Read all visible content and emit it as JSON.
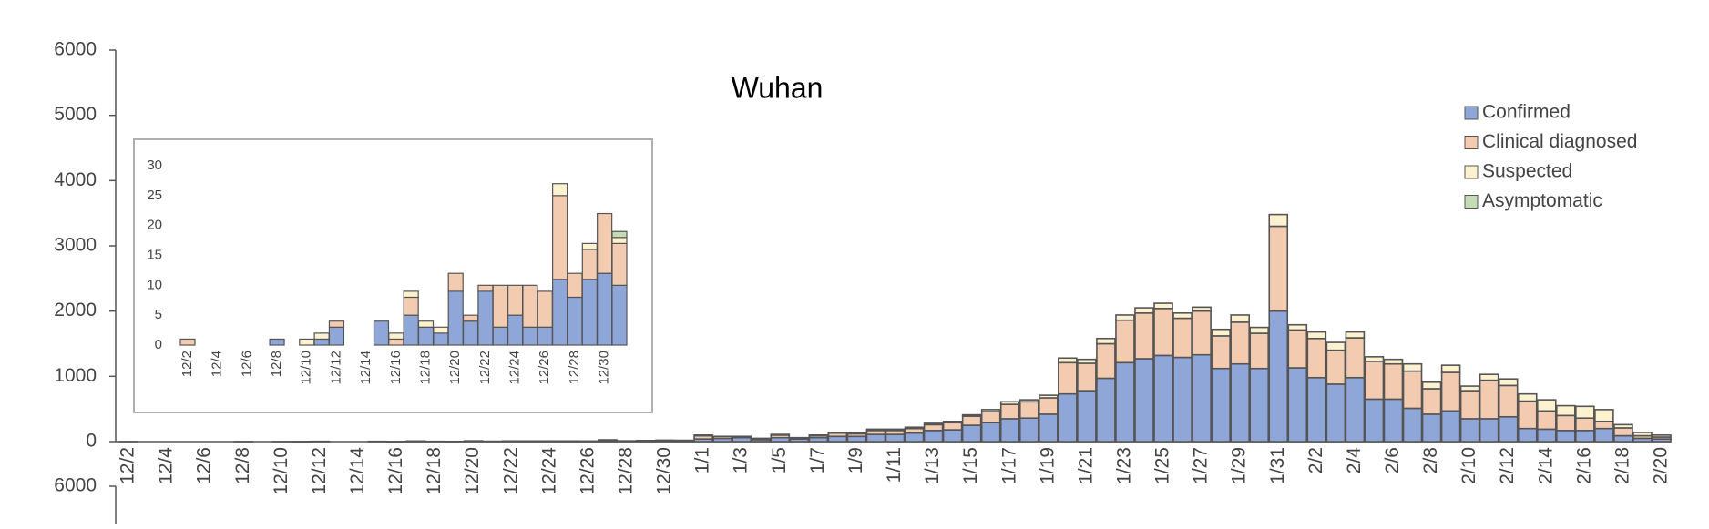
{
  "chart_data": [
    {
      "type": "bar",
      "stacked": true,
      "title": "Wuhan",
      "legend": "upper right",
      "categories": [
        "12/2",
        null,
        "12/4",
        null,
        "12/6",
        null,
        "12/8",
        null,
        "12/10",
        null,
        "12/12",
        null,
        "12/14",
        null,
        "12/16",
        null,
        "12/18",
        null,
        "12/20",
        null,
        "12/22",
        null,
        "12/24",
        null,
        "12/26",
        null,
        "12/28",
        null,
        "12/30",
        null,
        "1/1",
        null,
        "1/3",
        null,
        "1/5",
        null,
        "1/7",
        null,
        "1/9",
        null,
        "1/11",
        null,
        "1/13",
        null,
        "1/15",
        null,
        "1/17",
        null,
        "1/19",
        null,
        "1/21",
        null,
        "1/23",
        null,
        "1/25",
        null,
        "1/27",
        null,
        "1/29",
        null,
        "1/31",
        null,
        "2/2",
        null,
        "2/4",
        null,
        "2/6",
        null,
        "2/8",
        null,
        "2/10",
        null,
        "2/12",
        null,
        "2/14",
        null,
        "2/16",
        null,
        "2/18",
        null,
        "2/20"
      ],
      "ylim": [
        0,
        6000
      ],
      "yticks": [
        0,
        1000,
        2000,
        3000,
        4000,
        5000,
        6000
      ],
      "series": [
        {
          "name": "Confirmed",
          "color": "#8fa6d8",
          "values": [
            0,
            0,
            0,
            0,
            0,
            0,
            1,
            0,
            0,
            1,
            3,
            0,
            0,
            4,
            0,
            5,
            3,
            2,
            9,
            4,
            9,
            3,
            5,
            3,
            3,
            11,
            8,
            11,
            12,
            10,
            40,
            50,
            60,
            30,
            60,
            40,
            60,
            80,
            80,
            110,
            110,
            130,
            170,
            180,
            250,
            290,
            350,
            360,
            420,
            730,
            780,
            970,
            1210,
            1270,
            1320,
            1290,
            1330,
            1120,
            1190,
            1120,
            2000,
            1130,
            980,
            880,
            980,
            650,
            650,
            510,
            420,
            470,
            350,
            350,
            380,
            200,
            190,
            170,
            170,
            200,
            90,
            50,
            40
          ]
        },
        {
          "name": "Clinical diagnosed",
          "color": "#f3cbb0",
          "values": [
            1,
            0,
            0,
            0,
            0,
            0,
            0,
            0,
            0,
            0,
            1,
            0,
            0,
            0,
            1,
            3,
            0,
            0,
            3,
            1,
            1,
            7,
            5,
            7,
            6,
            14,
            4,
            5,
            10,
            7,
            50,
            30,
            20,
            20,
            40,
            20,
            30,
            50,
            40,
            60,
            60,
            70,
            90,
            110,
            140,
            170,
            220,
            250,
            250,
            480,
            420,
            530,
            650,
            700,
            720,
            600,
            670,
            500,
            640,
            540,
            1300,
            580,
            600,
            520,
            610,
            580,
            540,
            570,
            390,
            590,
            430,
            590,
            480,
            420,
            280,
            230,
            190,
            110,
            120,
            40,
            30
          ]
        },
        {
          "name": "Suspected",
          "color": "#fdf2d0",
          "values": [
            0,
            0,
            0,
            0,
            0,
            0,
            0,
            0,
            1,
            1,
            0,
            0,
            0,
            0,
            1,
            1,
            1,
            1,
            0,
            0,
            0,
            0,
            0,
            0,
            0,
            2,
            0,
            1,
            0,
            1,
            10,
            0,
            0,
            0,
            10,
            0,
            10,
            10,
            10,
            20,
            20,
            20,
            20,
            20,
            20,
            30,
            40,
            30,
            40,
            70,
            60,
            80,
            80,
            80,
            80,
            80,
            60,
            100,
            110,
            90,
            180,
            80,
            100,
            120,
            90,
            70,
            70,
            110,
            100,
            110,
            70,
            90,
            100,
            110,
            170,
            150,
            180,
            180,
            50,
            50,
            30
          ]
        },
        {
          "name": "Asymptomatic",
          "color": "#c4dcb6",
          "values": [
            0,
            0,
            0,
            0,
            0,
            0,
            0,
            0,
            0,
            0,
            0,
            0,
            0,
            0,
            0,
            0,
            0,
            0,
            0,
            0,
            0,
            0,
            0,
            0,
            0,
            0,
            0,
            0,
            0,
            1,
            0,
            0,
            0,
            0,
            0,
            0,
            0,
            0,
            0,
            0,
            0,
            0,
            0,
            0,
            0,
            0,
            0,
            0,
            0,
            0,
            0,
            0,
            0,
            0,
            0,
            0,
            0,
            0,
            0,
            0,
            0,
            0,
            0,
            0,
            0,
            0,
            0,
            0,
            0,
            0,
            0,
            0,
            0,
            0,
            0,
            0,
            0,
            0,
            0,
            0,
            0
          ]
        }
      ]
    },
    {
      "type": "bar",
      "stacked": true,
      "categories": [
        "12/2",
        null,
        "12/4",
        null,
        "12/6",
        null,
        "12/8",
        null,
        "12/10",
        null,
        "12/12",
        null,
        "12/14",
        null,
        "12/16",
        null,
        "12/18",
        null,
        "12/20",
        null,
        "12/22",
        null,
        "12/24",
        null,
        "12/26",
        null,
        "12/28",
        null,
        "12/30",
        null
      ],
      "ylim": [
        0,
        30
      ],
      "yticks": [
        0,
        5,
        10,
        15,
        20,
        25,
        30
      ],
      "series": [
        {
          "color": "#8fa6d8",
          "values": [
            0,
            0,
            0,
            0,
            0,
            0,
            1,
            0,
            0,
            1,
            3,
            0,
            0,
            4,
            0,
            5,
            3,
            2,
            9,
            4,
            9,
            3,
            5,
            3,
            3,
            11,
            8,
            11,
            12,
            10
          ]
        },
        {
          "color": "#f3cbb0",
          "values": [
            1,
            0,
            0,
            0,
            0,
            0,
            0,
            0,
            0,
            0,
            1,
            0,
            0,
            0,
            1,
            3,
            0,
            0,
            3,
            1,
            1,
            7,
            5,
            7,
            6,
            14,
            4,
            5,
            10,
            7
          ]
        },
        {
          "color": "#fdf2d0",
          "values": [
            0,
            0,
            0,
            0,
            0,
            0,
            0,
            0,
            1,
            1,
            0,
            0,
            0,
            0,
            1,
            1,
            1,
            1,
            0,
            0,
            0,
            0,
            0,
            0,
            0,
            2,
            0,
            1,
            0,
            1
          ]
        },
        {
          "color": "#c4dcb6",
          "values": [
            0,
            0,
            0,
            0,
            0,
            0,
            0,
            0,
            0,
            0,
            0,
            0,
            0,
            0,
            0,
            0,
            0,
            0,
            0,
            0,
            0,
            0,
            0,
            0,
            0,
            0,
            0,
            0,
            0,
            1
          ]
        }
      ]
    },
    {
      "type": "bar",
      "yticks": [
        6000
      ]
    }
  ]
}
